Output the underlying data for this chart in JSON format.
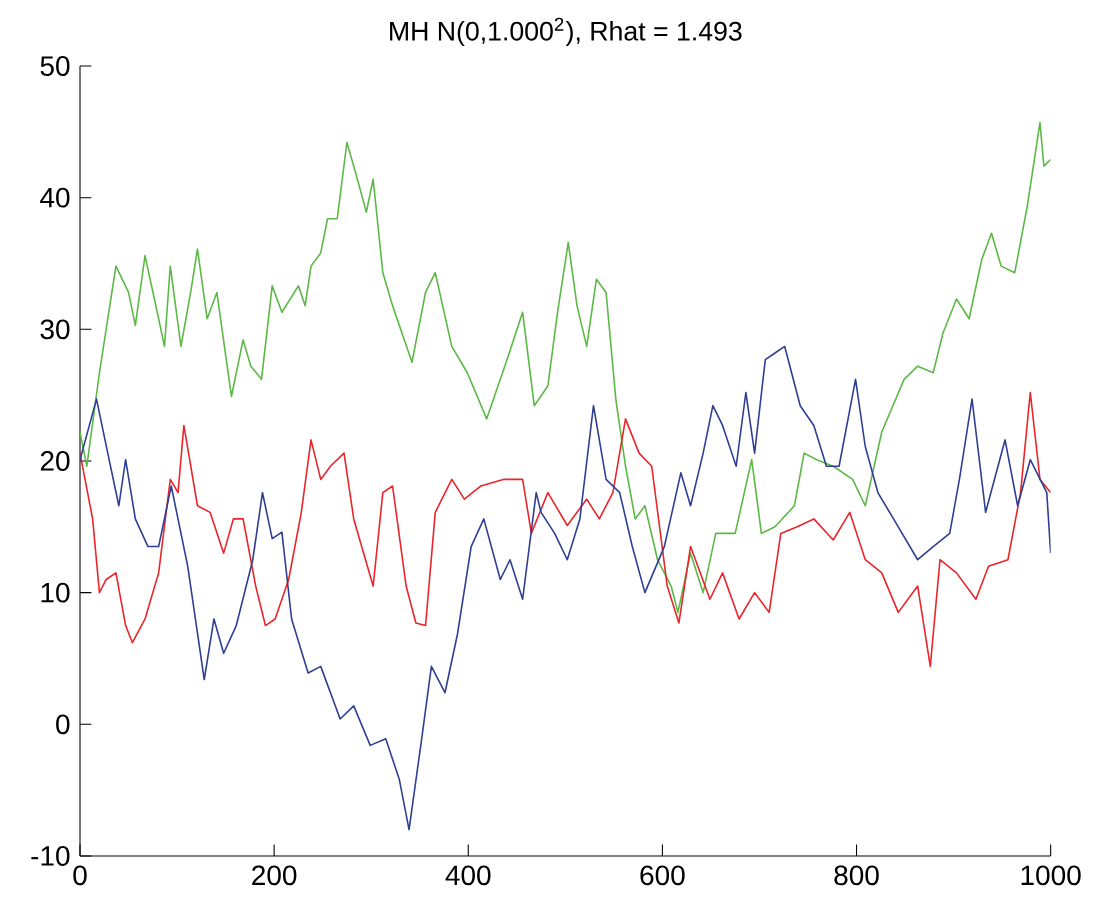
{
  "chart_data": {
    "type": "line",
    "title": "MH N(0,1.000$^{2}$), Rhat = 1.493",
    "xlim": [
      0,
      1000
    ],
    "ylim": [
      -10,
      50
    ],
    "xticks": [
      0,
      200,
      400,
      600,
      800,
      1000
    ],
    "yticks": [
      -10,
      0,
      10,
      20,
      30,
      40,
      50
    ],
    "grid": false,
    "marker": "none",
    "line_style": "solid",
    "series": [
      {
        "color": "#5cb947",
        "x": [
          0,
          7,
          20,
          37,
          50,
          57,
          67,
          81,
          87,
          93,
          104,
          114,
          121,
          131,
          141,
          156,
          168,
          176,
          187,
          198,
          208,
          225,
          232,
          238,
          248,
          255,
          265,
          275,
          285,
          295,
          302,
          312,
          322,
          342,
          356,
          366,
          383,
          399,
          419,
          440,
          456,
          468,
          482,
          492,
          503,
          512,
          522,
          532,
          542,
          552,
          562,
          572,
          582,
          595,
          609,
          616,
          629,
          642,
          655,
          675,
          692,
          702,
          716,
          736,
          746,
          759,
          776,
          796,
          809,
          826,
          849,
          863,
          879,
          889,
          903,
          916,
          929,
          939,
          949,
          963,
          976,
          989,
          993,
          1000
        ],
        "values": [
          22.2,
          19.6,
          26.7,
          34.8,
          32.8,
          30.3,
          35.6,
          30.8,
          28.7,
          34.8,
          28.7,
          32.8,
          36.1,
          30.8,
          32.8,
          24.9,
          29.2,
          27.2,
          26.2,
          33.3,
          31.3,
          33.3,
          31.8,
          34.8,
          35.8,
          38.4,
          38.4,
          44.2,
          41.6,
          38.9,
          41.4,
          34.3,
          31.8,
          27.5,
          32.8,
          34.3,
          28.7,
          26.7,
          23.2,
          27.7,
          31.3,
          24.2,
          25.7,
          31.3,
          36.6,
          31.8,
          28.7,
          33.8,
          32.8,
          24.7,
          19.6,
          15.6,
          16.6,
          12.5,
          10.5,
          8.5,
          13.0,
          10.0,
          14.5,
          14.5,
          20.1,
          14.5,
          15.0,
          16.6,
          20.6,
          20.1,
          19.6,
          18.6,
          16.6,
          22.2,
          26.2,
          27.2,
          26.7,
          29.7,
          32.3,
          30.8,
          35.3,
          37.3,
          34.8,
          34.3,
          39.4,
          45.7,
          42.4,
          42.9
        ]
      },
      {
        "color": "#e8262b",
        "x": [
          0,
          13,
          20,
          27,
          37,
          47,
          54,
          67,
          81,
          93,
          101,
          107,
          121,
          134,
          148,
          158,
          168,
          181,
          191,
          201,
          215,
          228,
          238,
          248,
          258,
          272,
          282,
          302,
          312,
          322,
          336,
          346,
          356,
          366,
          383,
          396,
          413,
          436,
          456,
          465,
          482,
          502,
          522,
          535,
          549,
          562,
          576,
          589,
          605,
          617,
          629,
          649,
          662,
          679,
          695,
          710,
          722,
          739,
          756,
          776,
          793,
          809,
          826,
          843,
          863,
          876,
          886,
          903,
          923,
          936,
          956,
          969,
          979,
          989,
          1000
        ],
        "values": [
          20.6,
          15.6,
          10.0,
          11.0,
          11.5,
          7.5,
          6.2,
          8.0,
          11.5,
          18.6,
          17.6,
          22.7,
          16.6,
          16.1,
          13.0,
          15.6,
          15.6,
          10.5,
          7.5,
          8.0,
          11.0,
          16.1,
          21.6,
          18.6,
          19.6,
          20.6,
          15.6,
          10.5,
          17.6,
          18.1,
          10.5,
          7.7,
          7.5,
          16.1,
          18.6,
          17.1,
          18.1,
          18.6,
          18.6,
          14.5,
          17.6,
          15.1,
          17.1,
          15.6,
          17.6,
          23.2,
          20.6,
          19.6,
          10.5,
          7.7,
          13.5,
          9.5,
          11.5,
          8.0,
          10.0,
          8.5,
          14.5,
          15.0,
          15.6,
          14.0,
          16.1,
          12.5,
          11.5,
          8.5,
          10.5,
          4.4,
          12.5,
          11.5,
          9.5,
          12.0,
          12.5,
          17.6,
          25.2,
          18.6,
          17.6
        ]
      },
      {
        "color": "#2e3f94",
        "x": [
          0,
          17,
          30,
          40,
          47,
          57,
          70,
          81,
          94,
          111,
          128,
          138,
          148,
          161,
          178,
          188,
          198,
          208,
          218,
          235,
          248,
          268,
          282,
          299,
          315,
          329,
          339,
          352,
          362,
          376,
          389,
          403,
          416,
          433,
          443,
          456,
          470,
          475,
          489,
          502,
          515,
          529,
          542,
          556,
          569,
          582,
          602,
          619,
          629,
          642,
          652,
          662,
          676,
          686,
          695,
          706,
          716,
          726,
          742,
          756,
          769,
          782,
          799,
          809,
          822,
          843,
          863,
          879,
          896,
          906,
          919,
          933,
          953,
          966,
          979,
          996,
          1000
        ],
        "values": [
          20.1,
          24.7,
          20.1,
          16.6,
          20.1,
          15.6,
          13.5,
          13.5,
          18.1,
          12.0,
          3.4,
          8.0,
          5.4,
          7.5,
          12.5,
          17.6,
          14.1,
          14.6,
          8.0,
          3.9,
          4.4,
          0.4,
          1.4,
          -1.6,
          -1.1,
          -4.2,
          -8.0,
          -1.1,
          4.4,
          2.4,
          6.9,
          13.5,
          15.6,
          11.0,
          12.5,
          9.5,
          17.6,
          16.1,
          14.5,
          12.5,
          15.6,
          24.2,
          18.6,
          17.6,
          13.5,
          10.0,
          13.5,
          19.1,
          16.6,
          20.6,
          24.2,
          22.7,
          19.6,
          25.2,
          20.6,
          27.7,
          28.2,
          28.7,
          24.2,
          22.7,
          19.6,
          19.6,
          26.2,
          21.1,
          17.6,
          15.0,
          12.5,
          13.5,
          14.5,
          18.6,
          24.7,
          16.1,
          21.6,
          16.6,
          20.1,
          17.6,
          13.0
        ]
      }
    ]
  }
}
